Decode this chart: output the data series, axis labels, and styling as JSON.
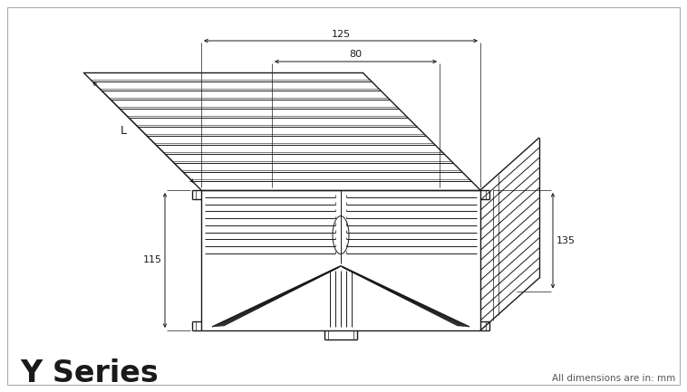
{
  "label_y_series": "Y Series",
  "label_dimensions": "All dimensions are in: mm",
  "dim_125": "125",
  "dim_80": "80",
  "dim_135": "135",
  "dim_115": "115",
  "dim_L": "L",
  "bg_color": "#ffffff",
  "line_color": "#1a1a1a",
  "fig_width": 7.58,
  "fig_height": 4.33,
  "dpi": 100
}
